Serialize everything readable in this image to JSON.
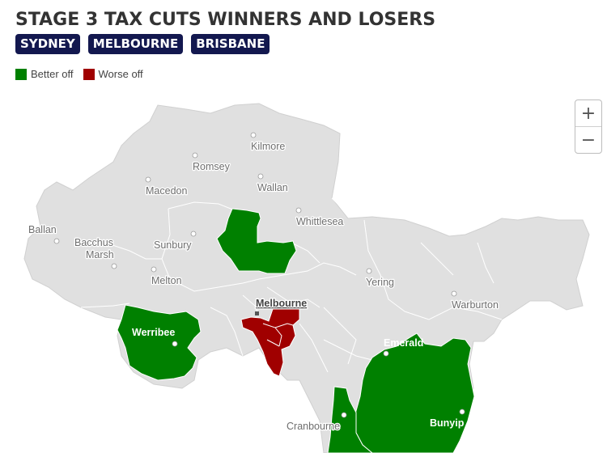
{
  "title": "STAGE 3 TAX CUTS WINNERS AND LOSERS",
  "city_tabs": [
    "SYDNEY",
    "MELBOURNE",
    "BRISBANE"
  ],
  "legend": {
    "better": {
      "label": "Better off",
      "color": "#008000"
    },
    "worse": {
      "label": "Worse off",
      "color": "#a00000"
    }
  },
  "zoom": {
    "in": "+",
    "out": "−"
  },
  "places": {
    "kilmore": "Kilmore",
    "romsey": "Romsey",
    "macedon": "Macedon",
    "wallan": "Wallan",
    "whittlesea": "Whittlesea",
    "ballan": "Ballan",
    "bacchus_marsh_1": "Bacchus",
    "bacchus_marsh_2": "Marsh",
    "sunbury": "Sunbury",
    "melton": "Melton",
    "yering": "Yering",
    "melbourne": "Melbourne",
    "warburton": "Warburton",
    "werribee": "Werribee",
    "emerald": "Emerald",
    "cranbourne": "Cranbourne",
    "bunyip": "Bunyip"
  },
  "colors": {
    "region": "#e0e0e0",
    "border": "#ffffff"
  }
}
